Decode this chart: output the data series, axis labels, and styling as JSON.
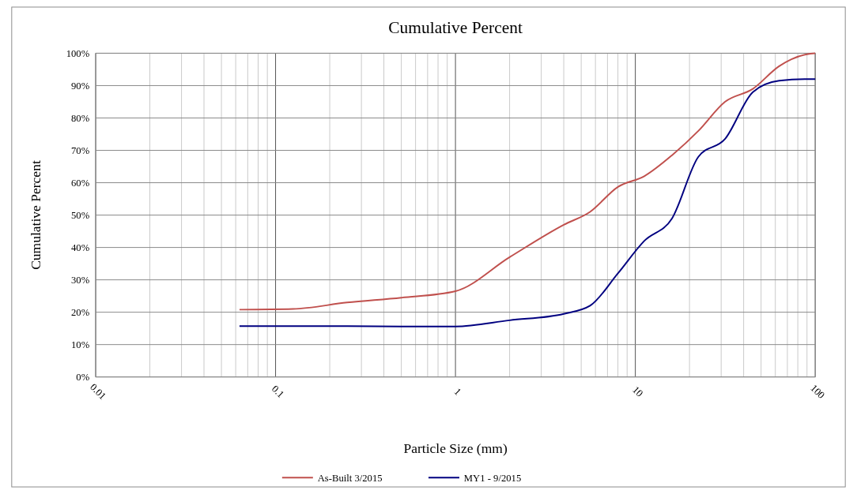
{
  "chart_data": {
    "type": "line",
    "title": "Cumulative Percent",
    "xlabel": "Particle Size (mm)",
    "ylabel": "Cumulative Percent",
    "log": "x",
    "grid": true,
    "legend": "bottom",
    "marker": "none",
    "line_style": "solid",
    "xlim": [
      0.01,
      100
    ],
    "xticks": [
      0.01,
      0.1,
      1,
      10,
      100
    ],
    "ylim": [
      0,
      100
    ],
    "yticks": [
      {
        "value": 0,
        "label": "0%"
      },
      {
        "value": 10,
        "label": "10%"
      },
      {
        "value": 20,
        "label": "20%"
      },
      {
        "value": 30,
        "label": "30%"
      },
      {
        "value": 40,
        "label": "40%"
      },
      {
        "value": 50,
        "label": "50%"
      },
      {
        "value": 60,
        "label": "60%"
      },
      {
        "value": 70,
        "label": "70%"
      },
      {
        "value": 80,
        "label": "80%"
      },
      {
        "value": 90,
        "label": "90%"
      },
      {
        "value": 100,
        "label": "100%"
      }
    ],
    "x": [
      0.063,
      0.125,
      0.25,
      0.5,
      1,
      2,
      4,
      5.6,
      8,
      11.2,
      16,
      22.4,
      31.5,
      45,
      63,
      90,
      100
    ],
    "series": [
      {
        "name": "As-Built 3/2015",
        "color": "#c0504d",
        "values": [
          20.8,
          21,
          23,
          24.5,
          26.5,
          37,
          47,
          51,
          58.7,
          62,
          68.5,
          76,
          85,
          89,
          96,
          99.7,
          100
        ]
      },
      {
        "name": "MY1 - 9/2015",
        "color": "#000080",
        "values": [
          15.7,
          15.7,
          15.7,
          15.6,
          15.6,
          17.5,
          19.5,
          22,
          32,
          42,
          49,
          68,
          73.5,
          88,
          91.5,
          92,
          92
        ]
      }
    ]
  }
}
